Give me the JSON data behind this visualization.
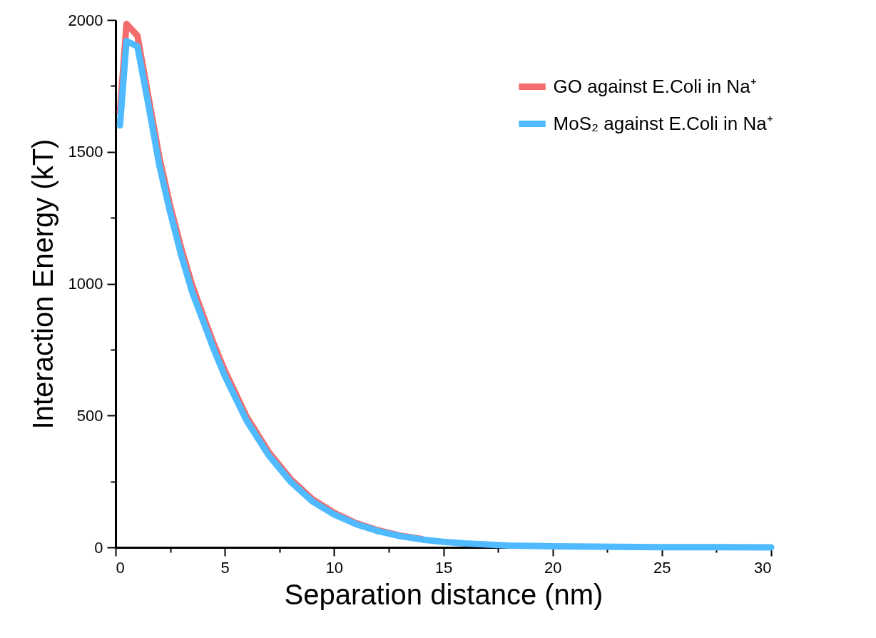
{
  "chart_data": {
    "type": "line",
    "xlabel": "Separation distance (nm)",
    "ylabel": "Interaction Energy (kT)",
    "x": [
      0.2,
      0.5,
      1,
      1.5,
      2,
      2.5,
      3,
      3.5,
      4,
      4.5,
      5,
      6,
      7,
      8,
      9,
      10,
      11,
      12,
      13,
      14,
      15,
      16,
      18,
      20,
      25,
      30
    ],
    "series": [
      {
        "name": "GO against E.Coli in Na⁺",
        "color": "#f46d6d",
        "values": [
          1650,
          1985,
          1940,
          1710,
          1480,
          1295,
          1135,
          995,
          880,
          770,
          670,
          495,
          362,
          260,
          183,
          131,
          92,
          65,
          45,
          32,
          null,
          null,
          null,
          null,
          null,
          null
        ]
      },
      {
        "name": "MoS₂ against E.Coli in Na⁺",
        "color": "#4fbaff",
        "values": [
          1600,
          1920,
          1900,
          1680,
          1450,
          1270,
          1110,
          970,
          860,
          750,
          650,
          480,
          350,
          250,
          175,
          125,
          88,
          62,
          43,
          30,
          21,
          15,
          7,
          4,
          1,
          0
        ]
      }
    ],
    "xlim": [
      0,
      30
    ],
    "xticks": [
      0,
      {
        "value": 2.5,
        "label": null
      },
      5,
      {
        "value": 7.5,
        "label": null
      },
      10,
      {
        "value": 12.5,
        "label": null
      },
      15,
      {
        "value": 17.5,
        "label": null
      },
      20,
      {
        "value": 22.5,
        "label": null
      },
      25,
      {
        "value": 27.5,
        "label": null
      },
      30
    ],
    "ylim": [
      0,
      2000
    ],
    "yticks": [
      0,
      {
        "value": 250,
        "label": null
      },
      500,
      {
        "value": 750,
        "label": null
      },
      1000,
      {
        "value": 1250,
        "label": null
      },
      1500,
      {
        "value": 1750,
        "label": null
      },
      2000
    ],
    "legend": "top right",
    "line_style": "solid",
    "marker": "none",
    "grid": false
  }
}
